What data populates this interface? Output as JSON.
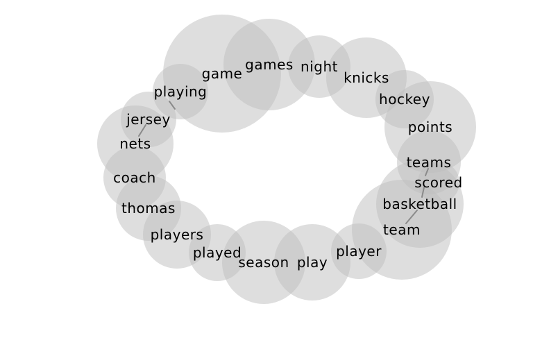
{
  "words": [
    {
      "id": "game",
      "label": "game",
      "weight": 85
    },
    {
      "id": "games",
      "label": "games",
      "weight": 66
    },
    {
      "id": "night",
      "label": "night",
      "weight": 45
    },
    {
      "id": "knicks",
      "label": "knicks",
      "weight": 58
    },
    {
      "id": "hockey",
      "label": "hockey",
      "weight": 42
    },
    {
      "id": "points",
      "label": "points",
      "weight": 66
    },
    {
      "id": "teams",
      "label": "teams",
      "weight": 46
    },
    {
      "id": "scored",
      "label": "scored",
      "weight": 30
    },
    {
      "id": "basketball",
      "label": "basketball",
      "weight": 63
    },
    {
      "id": "team",
      "label": "team",
      "weight": 72
    },
    {
      "id": "player",
      "label": "player",
      "weight": 40
    },
    {
      "id": "play",
      "label": "play",
      "weight": 55
    },
    {
      "id": "season",
      "label": "season",
      "weight": 60
    },
    {
      "id": "played",
      "label": "played",
      "weight": 41
    },
    {
      "id": "players",
      "label": "players",
      "weight": 49
    },
    {
      "id": "thomas",
      "label": "thomas",
      "weight": 47
    },
    {
      "id": "coach",
      "label": "coach",
      "weight": 45
    },
    {
      "id": "nets",
      "label": "nets",
      "weight": 55
    },
    {
      "id": "jersey",
      "label": "jersey",
      "weight": 40
    },
    {
      "id": "playing",
      "label": "playing",
      "weight": 40
    }
  ],
  "links": [
    {
      "from": "nets",
      "to": "jersey"
    },
    {
      "from": "playing",
      "to": "game"
    },
    {
      "from": "teams",
      "to": "scored"
    },
    {
      "from": "scored",
      "to": "basketball"
    },
    {
      "from": "basketball",
      "to": "team"
    }
  ]
}
